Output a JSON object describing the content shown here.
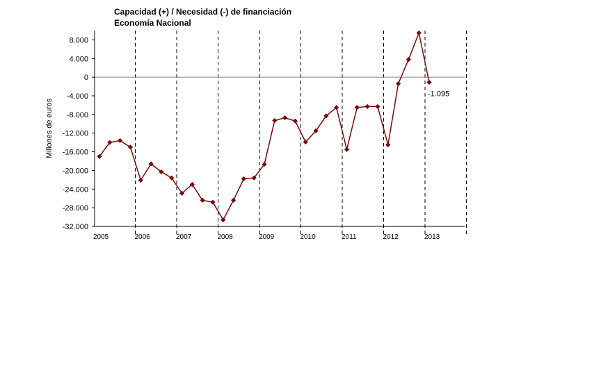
{
  "chart_data": {
    "type": "line",
    "title": "Capacidad (+) / Necesidad (-) de financiación",
    "subtitle": "Economía Nacional",
    "ylabel": "Millones de euros",
    "xlabel": "",
    "ylim": [
      -32000,
      10000
    ],
    "yticks": [
      {
        "value": 8000,
        "label": "8.000"
      },
      {
        "value": 4000,
        "label": "4.000"
      },
      {
        "value": 0,
        "label": "0"
      },
      {
        "value": -4000,
        "label": "-4.000"
      },
      {
        "value": -8000,
        "label": "-8.000"
      },
      {
        "value": -12000,
        "label": "-12.000"
      },
      {
        "value": -16000,
        "label": "-16.000"
      },
      {
        "value": -20000,
        "label": "-20.000"
      },
      {
        "value": -24000,
        "label": "-24.000"
      },
      {
        "value": -28000,
        "label": "-28.000"
      },
      {
        "value": -32000,
        "label": "-32.000"
      }
    ],
    "year_labels": [
      "2005",
      "2006",
      "2007",
      "2008",
      "2009",
      "2010",
      "2011",
      "2012",
      "2013"
    ],
    "year_dividers": 9,
    "series": [
      {
        "color": "#7b0a0a",
        "values": [
          -17000,
          -14000,
          -13600,
          -15000,
          -22100,
          -18600,
          -20300,
          -21600,
          -24900,
          -23000,
          -26400,
          -26800,
          -30600,
          -26400,
          -21800,
          -21600,
          -18700,
          -9300,
          -8700,
          -9400,
          -13900,
          -11500,
          -8300,
          -6500,
          -15500,
          -6500,
          -6300,
          -6300,
          -14500,
          -1400,
          3800,
          9500,
          -1095
        ]
      }
    ],
    "annotation": {
      "label": "-1.095",
      "value": -1095
    }
  }
}
